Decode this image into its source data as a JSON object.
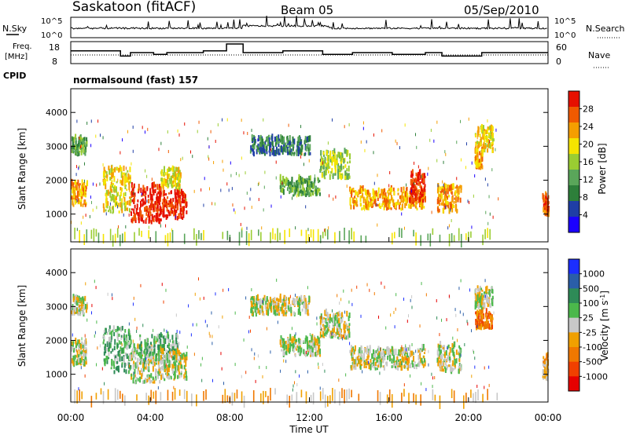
{
  "header": {
    "station": "Saskatoon (fitACF)",
    "beam": "Beam 05",
    "date": "05/Sep/2010"
  },
  "top_panels": {
    "nsky_label": "N.Sky",
    "nsky_ticks": [
      "10^5",
      "10^0"
    ],
    "nsearch_ticks": [
      "10^5",
      "10^0"
    ],
    "nsearch_label": "N.Search",
    "freq_label_1": "Freq.",
    "freq_label_2": "[MHz]",
    "freq_ticks": [
      "18",
      "8"
    ],
    "nave_ticks": [
      "60",
      "0"
    ],
    "nave_label": "Nave",
    "cpid_label": "CPID",
    "cpid_text": "normalsound (fast) 157",
    "freq_mhz_steps": [
      {
        "start": "00:00",
        "end": "00:50",
        "value": 14
      },
      {
        "start": "00:50",
        "end": "02:30",
        "value": 14
      },
      {
        "start": "02:30",
        "end": "03:00",
        "value": 11
      },
      {
        "start": "03:00",
        "end": "04:10",
        "value": 13
      },
      {
        "start": "04:10",
        "end": "04:50",
        "value": 12
      },
      {
        "start": "04:50",
        "end": "06:40",
        "value": 13
      },
      {
        "start": "06:40",
        "end": "07:50",
        "value": 14
      },
      {
        "start": "07:50",
        "end": "08:40",
        "value": 18
      },
      {
        "start": "08:40",
        "end": "10:40",
        "value": 13
      },
      {
        "start": "10:40",
        "end": "12:40",
        "value": 14
      },
      {
        "start": "12:40",
        "end": "14:10",
        "value": 12
      },
      {
        "start": "14:10",
        "end": "16:10",
        "value": 13
      },
      {
        "start": "16:10",
        "end": "17:50",
        "value": 12
      },
      {
        "start": "17:50",
        "end": "18:40",
        "value": 13
      },
      {
        "start": "18:40",
        "end": "20:40",
        "value": 11
      },
      {
        "start": "20:40",
        "end": "24:00",
        "value": 13
      }
    ]
  },
  "color_colors": {
    "power": [
      "#1b00ff",
      "#1f3ea6",
      "#2d7f3a",
      "#5aa65a",
      "#9acd32",
      "#f5e400",
      "#f59e00",
      "#f05a00",
      "#e61000"
    ],
    "velocity": [
      "#1b2eff",
      "#2a5ea8",
      "#2e8b57",
      "#4bb84b",
      "#c8c8c8",
      "#f0a000",
      "#f07800",
      "#f04000",
      "#e60000"
    ]
  },
  "chart_data": [
    {
      "type": "heatmap",
      "title": "",
      "xlabel": "Time UT",
      "ylabel": "Slant Range [km]",
      "colorbar_label": "Power [dB]",
      "colorbar_ticks": [
        "4",
        "8",
        "12",
        "16",
        "20",
        "24",
        "28"
      ],
      "x_ticks": [
        "00:00",
        "04:00",
        "08:00",
        "12:00",
        "16:00",
        "20:00",
        "00:00"
      ],
      "y_ticks": [
        "1000",
        "2000",
        "3000",
        "4000"
      ],
      "ylim": [
        180,
        4700
      ],
      "xlim_hours": [
        0,
        24
      ],
      "regions": [
        {
          "t0": 0.0,
          "t1": 0.8,
          "r0": 1200,
          "r1": 1900,
          "lvl": 6
        },
        {
          "t0": 0.0,
          "t1": 0.8,
          "r0": 2700,
          "r1": 3200,
          "lvl": 3
        },
        {
          "t0": 1.6,
          "t1": 3.0,
          "r0": 1000,
          "r1": 2300,
          "lvl": 5
        },
        {
          "t0": 3.0,
          "t1": 4.5,
          "r0": 700,
          "r1": 1800,
          "lvl": 8
        },
        {
          "t0": 4.2,
          "t1": 5.8,
          "r0": 800,
          "r1": 1600,
          "lvl": 8
        },
        {
          "t0": 4.5,
          "t1": 5.5,
          "r0": 1700,
          "r1": 2300,
          "lvl": 5
        },
        {
          "t0": 9.0,
          "t1": 12.0,
          "r0": 2700,
          "r1": 3200,
          "lvl": 2
        },
        {
          "t0": 10.5,
          "t1": 12.5,
          "r0": 1500,
          "r1": 2000,
          "lvl": 3
        },
        {
          "t0": 12.5,
          "t1": 14.0,
          "r0": 2000,
          "r1": 2800,
          "lvl": 4
        },
        {
          "t0": 14.0,
          "t1": 17.8,
          "r0": 1100,
          "r1": 1700,
          "lvl": 6
        },
        {
          "t0": 17.0,
          "t1": 17.8,
          "r0": 1300,
          "r1": 2200,
          "lvl": 8
        },
        {
          "t0": 18.4,
          "t1": 19.6,
          "r0": 1000,
          "r1": 1800,
          "lvl": 6
        },
        {
          "t0": 20.3,
          "t1": 21.2,
          "r0": 2800,
          "r1": 3500,
          "lvl": 5
        },
        {
          "t0": 20.3,
          "t1": 20.7,
          "r0": 2300,
          "r1": 2800,
          "lvl": 6
        },
        {
          "t0": 23.7,
          "t1": 24.0,
          "r0": 900,
          "r1": 1500,
          "lvl": 7
        }
      ],
      "ground_band": {
        "r0": 180,
        "r1": 600,
        "lvl": 4
      }
    },
    {
      "type": "heatmap",
      "title": "",
      "xlabel": "Time UT",
      "ylabel": "Slant Range [km]",
      "colorbar_label": "Velocity [m s^-1]",
      "colorbar_ticks": [
        "1000",
        "500",
        "100",
        "25",
        "-25",
        "-100",
        "-500",
        "-1000"
      ],
      "x_ticks": [
        "00:00",
        "04:00",
        "08:00",
        "12:00",
        "16:00",
        "20:00",
        "00:00"
      ],
      "y_ticks": [
        "1000",
        "2000",
        "3000",
        "4000"
      ],
      "ylim": [
        180,
        4700
      ],
      "xlim_hours": [
        0,
        24
      ],
      "regions": [
        {
          "t0": 0.0,
          "t1": 0.8,
          "r0": 1200,
          "r1": 1900,
          "lvl": 4
        },
        {
          "t0": 0.0,
          "t1": 0.8,
          "r0": 2700,
          "r1": 3200,
          "lvl": 4
        },
        {
          "t0": 1.6,
          "t1": 3.0,
          "r0": 1000,
          "r1": 2300,
          "lvl": 3
        },
        {
          "t0": 3.0,
          "t1": 4.5,
          "r0": 700,
          "r1": 1800,
          "lvl": 4
        },
        {
          "t0": 3.4,
          "t1": 5.4,
          "r0": 1300,
          "r1": 2100,
          "lvl": 3
        },
        {
          "t0": 4.5,
          "t1": 5.8,
          "r0": 800,
          "r1": 1600,
          "lvl": 4
        },
        {
          "t0": 9.0,
          "t1": 12.0,
          "r0": 2700,
          "r1": 3200,
          "lvl": 4
        },
        {
          "t0": 10.5,
          "t1": 12.5,
          "r0": 1500,
          "r1": 2000,
          "lvl": 4
        },
        {
          "t0": 12.5,
          "t1": 14.0,
          "r0": 2000,
          "r1": 2800,
          "lvl": 4
        },
        {
          "t0": 14.0,
          "t1": 17.8,
          "r0": 1100,
          "r1": 1700,
          "lvl": 4
        },
        {
          "t0": 18.4,
          "t1": 19.6,
          "r0": 1000,
          "r1": 1800,
          "lvl": 4
        },
        {
          "t0": 20.3,
          "t1": 21.2,
          "r0": 2300,
          "r1": 2800,
          "lvl": 6
        },
        {
          "t0": 20.3,
          "t1": 21.2,
          "r0": 2900,
          "r1": 3500,
          "lvl": 4
        },
        {
          "t0": 23.7,
          "t1": 24.0,
          "r0": 800,
          "r1": 1500,
          "lvl": 5
        }
      ],
      "ground_band": {
        "r0": 180,
        "r1": 600,
        "lvl": 5
      }
    }
  ]
}
